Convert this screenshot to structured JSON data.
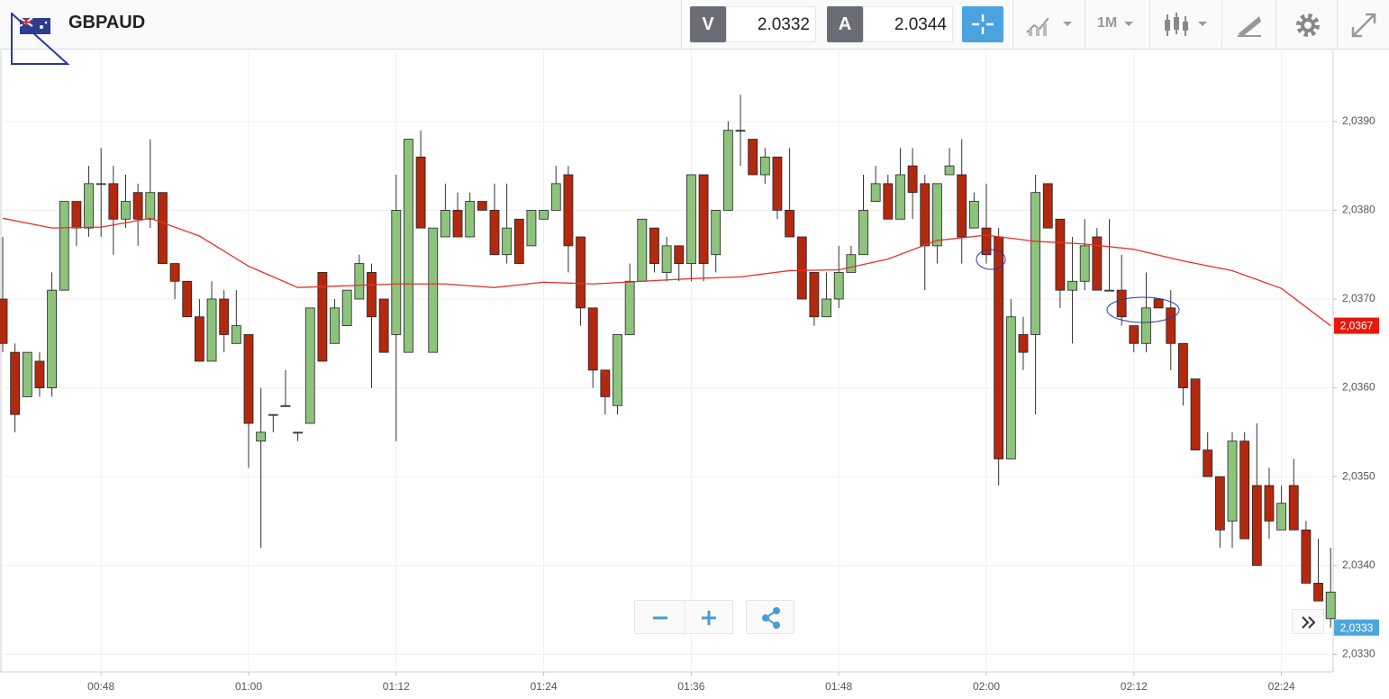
{
  "header": {
    "symbol": "GBPAUD",
    "bid_label": "V",
    "bid": "2.0332",
    "ask_label": "A",
    "ask": "2.0344",
    "timeframe": "1M"
  },
  "chart_data": {
    "type": "candlestick",
    "x": [
      "00:40",
      "00:41",
      "00:42",
      "00:43",
      "00:44",
      "00:45",
      "00:46",
      "00:47",
      "00:48",
      "00:49",
      "00:50",
      "00:51",
      "00:52",
      "00:53",
      "00:54",
      "00:55",
      "00:56",
      "00:57",
      "00:58",
      "00:59",
      "01:00",
      "01:01",
      "01:02",
      "01:03",
      "01:04",
      "01:05",
      "01:06",
      "01:07",
      "01:08",
      "01:09",
      "01:10",
      "01:11",
      "01:12",
      "01:13",
      "01:14",
      "01:15",
      "01:16",
      "01:17",
      "01:18",
      "01:19",
      "01:20",
      "01:21",
      "01:22",
      "01:23",
      "01:24",
      "01:25",
      "01:26",
      "01:27",
      "01:28",
      "01:29",
      "01:30",
      "01:31",
      "01:32",
      "01:33",
      "01:34",
      "01:35",
      "01:36",
      "01:37",
      "01:38",
      "01:39",
      "01:40",
      "01:41",
      "01:42",
      "01:43",
      "01:44",
      "01:45",
      "01:46",
      "01:47",
      "01:48",
      "01:49",
      "01:50",
      "01:51",
      "01:52",
      "01:53",
      "01:54",
      "01:55",
      "01:56",
      "01:57",
      "01:58",
      "01:59",
      "02:00",
      "02:01",
      "02:02",
      "02:03",
      "02:04",
      "02:05",
      "02:06",
      "02:07",
      "02:08",
      "02:09",
      "02:10",
      "02:11",
      "02:12",
      "02:13",
      "02:14",
      "02:15",
      "02:16",
      "02:17",
      "02:18",
      "02:19",
      "02:20",
      "02:21",
      "02:22",
      "02:23",
      "02:24",
      "02:25",
      "02:26",
      "02:27",
      "02:28"
    ],
    "open": [
      2.037,
      2.0364,
      2.0359,
      2.0363,
      2.036,
      2.0371,
      2.0381,
      2.0378,
      2.0383,
      2.0383,
      2.0379,
      2.0382,
      2.0379,
      2.0382,
      2.0374,
      2.0372,
      2.0368,
      2.0363,
      2.037,
      2.0365,
      2.0366,
      2.0354,
      2.0357,
      2.0358,
      2.0355,
      2.0356,
      2.0373,
      2.0365,
      2.0367,
      2.037,
      2.0373,
      2.037,
      2.0366,
      2.0364,
      2.0386,
      2.0364,
      2.0377,
      2.038,
      2.0377,
      2.0381,
      2.038,
      2.0375,
      2.0379,
      2.0376,
      2.0379,
      2.038,
      2.0384,
      2.0377,
      2.0369,
      2.0362,
      2.0358,
      2.0366,
      2.0372,
      2.0378,
      2.0373,
      2.0376,
      2.0374,
      2.0384,
      2.0375,
      2.038,
      2.0389,
      2.0388,
      2.0384,
      2.0386,
      2.038,
      2.0377,
      2.0373,
      2.0368,
      2.037,
      2.0373,
      2.0375,
      2.0381,
      2.0383,
      2.0379,
      2.0385,
      2.0383,
      2.0376,
      2.0384,
      2.0384,
      2.0378,
      2.0378,
      2.0377,
      2.0352,
      2.0366,
      2.0366,
      2.0383,
      2.0379,
      2.0371,
      2.0372,
      2.0377,
      2.0371,
      2.0371,
      2.0367,
      2.0365,
      2.037,
      2.0369,
      2.0365,
      2.0361,
      2.0353,
      2.035,
      2.0345,
      2.0354,
      2.0349,
      2.0349,
      2.0344,
      2.0349,
      2.0344,
      2.0338,
      2.0334
    ],
    "high": [
      2.0377,
      2.0365,
      2.0364,
      2.0364,
      2.0373,
      2.0381,
      2.0381,
      2.0385,
      2.0387,
      2.0385,
      2.0384,
      2.0383,
      2.0388,
      2.0382,
      2.0374,
      2.0372,
      2.037,
      2.0372,
      2.0371,
      2.0371,
      2.0366,
      2.036,
      2.0357,
      2.0362,
      2.0355,
      2.0369,
      2.0373,
      2.037,
      2.0371,
      2.0375,
      2.0374,
      2.037,
      2.0384,
      2.0388,
      2.0389,
      2.0378,
      2.0383,
      2.0382,
      2.0382,
      2.0381,
      2.0383,
      2.0383,
      2.0379,
      2.038,
      2.038,
      2.0385,
      2.0385,
      2.0377,
      2.0369,
      2.0362,
      2.0366,
      2.0374,
      2.0379,
      2.0378,
      2.0377,
      2.0376,
      2.0384,
      2.0384,
      2.038,
      2.039,
      2.0393,
      2.0388,
      2.0387,
      2.0386,
      2.0387,
      2.0377,
      2.0373,
      2.0373,
      2.0376,
      2.0376,
      2.0384,
      2.0385,
      2.0384,
      2.0387,
      2.0387,
      2.0384,
      2.0383,
      2.0387,
      2.0388,
      2.0382,
      2.0383,
      2.0378,
      2.037,
      2.0368,
      2.0384,
      2.0383,
      2.0379,
      2.0377,
      2.0379,
      2.0378,
      2.0379,
      2.0375,
      2.0367,
      2.0373,
      2.037,
      2.0371,
      2.0365,
      2.0361,
      2.0355,
      2.035,
      2.0355,
      2.0355,
      2.0356,
      2.0351,
      2.0349,
      2.0352,
      2.0345,
      2.0343,
      2.0342
    ],
    "low": [
      2.0364,
      2.0355,
      2.0359,
      2.0359,
      2.0359,
      2.0371,
      2.0376,
      2.0377,
      2.0377,
      2.0375,
      2.0378,
      2.0376,
      2.0378,
      2.0374,
      2.037,
      2.0368,
      2.0363,
      2.0363,
      2.0364,
      2.0365,
      2.0351,
      2.0342,
      2.0355,
      2.0358,
      2.0354,
      2.0356,
      2.0363,
      2.0365,
      2.0367,
      2.037,
      2.036,
      2.0364,
      2.0354,
      2.0364,
      2.0378,
      2.0364,
      2.0377,
      2.0377,
      2.0377,
      2.038,
      2.0375,
      2.0374,
      2.0374,
      2.0376,
      2.0379,
      2.038,
      2.0373,
      2.0367,
      2.036,
      2.0357,
      2.0357,
      2.0366,
      2.0372,
      2.0373,
      2.0372,
      2.0372,
      2.0372,
      2.0372,
      2.0373,
      2.038,
      2.0385,
      2.0384,
      2.0383,
      2.0379,
      2.0377,
      2.037,
      2.0367,
      2.0368,
      2.0369,
      2.0373,
      2.0375,
      2.0381,
      2.0379,
      2.0379,
      2.0379,
      2.0371,
      2.0374,
      2.0384,
      2.0374,
      2.0378,
      2.0374,
      2.0349,
      2.0352,
      2.0362,
      2.0357,
      2.0378,
      2.0369,
      2.0365,
      2.0371,
      2.0371,
      2.0371,
      2.0367,
      2.0364,
      2.0364,
      2.0369,
      2.0362,
      2.0358,
      2.0353,
      2.035,
      2.0342,
      2.0342,
      2.0343,
      2.034,
      2.0343,
      2.0344,
      2.0344,
      2.0338,
      2.0336,
      2.0333
    ],
    "close": [
      2.0365,
      2.0357,
      2.0364,
      2.036,
      2.0371,
      2.0381,
      2.0378,
      2.0383,
      2.0383,
      2.0379,
      2.0381,
      2.0379,
      2.0382,
      2.0374,
      2.0372,
      2.0368,
      2.0363,
      2.037,
      2.0366,
      2.0367,
      2.0356,
      2.0355,
      2.0357,
      2.0358,
      2.0355,
      2.0369,
      2.0363,
      2.0369,
      2.0371,
      2.0374,
      2.0368,
      2.0364,
      2.038,
      2.0388,
      2.0378,
      2.0378,
      2.038,
      2.0377,
      2.0381,
      2.038,
      2.0375,
      2.0378,
      2.0374,
      2.038,
      2.038,
      2.0383,
      2.0376,
      2.0369,
      2.0362,
      2.0359,
      2.0366,
      2.0372,
      2.0379,
      2.0374,
      2.0376,
      2.0374,
      2.0384,
      2.0374,
      2.038,
      2.0389,
      2.0389,
      2.0384,
      2.0386,
      2.038,
      2.0377,
      2.037,
      2.0368,
      2.037,
      2.0373,
      2.0375,
      2.038,
      2.0383,
      2.0379,
      2.0384,
      2.0382,
      2.0376,
      2.0383,
      2.0385,
      2.0377,
      2.0381,
      2.0375,
      2.0352,
      2.0368,
      2.0364,
      2.0382,
      2.0378,
      2.0371,
      2.0372,
      2.0376,
      2.0371,
      2.0371,
      2.0368,
      2.0365,
      2.0369,
      2.0369,
      2.0365,
      2.036,
      2.0353,
      2.035,
      2.0344,
      2.0354,
      2.0343,
      2.034,
      2.0345,
      2.0347,
      2.0344,
      2.0338,
      2.0336,
      2.0337
    ],
    "up_color": "#8dc37c",
    "down_color": "#b3290f",
    "ma_line": {
      "color": "#e8312b",
      "x": [
        "00:40",
        "00:44",
        "00:48",
        "00:52",
        "00:56",
        "01:00",
        "01:04",
        "01:08",
        "01:12",
        "01:16",
        "01:20",
        "01:24",
        "01:28",
        "01:32",
        "01:36",
        "01:40",
        "01:44",
        "01:48",
        "01:52",
        "01:56",
        "02:00",
        "02:04",
        "02:08",
        "02:12",
        "02:16",
        "02:20",
        "02:24",
        "02:28"
      ],
      "values": [
        2.03791,
        2.0378,
        2.03781,
        2.03791,
        2.03771,
        2.03737,
        2.03713,
        2.03715,
        2.03717,
        2.03717,
        2.03713,
        2.03719,
        2.03717,
        2.0372,
        2.03723,
        2.03725,
        2.03732,
        2.03733,
        2.03745,
        2.03766,
        2.03772,
        2.03765,
        2.03762,
        2.03756,
        2.03743,
        2.03732,
        2.03712,
        2.0367
      ]
    },
    "price_tags": [
      {
        "value": 2.0367,
        "label": "2,0367",
        "color": "#e8180c"
      },
      {
        "value": 2.0333,
        "label": "2,0333",
        "color": "#4ea6d9"
      }
    ],
    "ylim": [
      2.0328,
      2.0398
    ],
    "yticks": [
      {
        "value": 2.033,
        "label": "2,0330"
      },
      {
        "value": 2.034,
        "label": "2,0340"
      },
      {
        "value": 2.035,
        "label": "2,0350"
      },
      {
        "value": 2.036,
        "label": "2,0360"
      },
      {
        "value": 2.037,
        "label": "2,0370"
      },
      {
        "value": 2.038,
        "label": "2,0380"
      },
      {
        "value": 2.039,
        "label": "2,0390"
      }
    ],
    "xticks": [
      "00:48",
      "01:00",
      "01:12",
      "01:24",
      "01:36",
      "01:48",
      "02:00",
      "02:12",
      "02:24"
    ],
    "grid": true
  }
}
